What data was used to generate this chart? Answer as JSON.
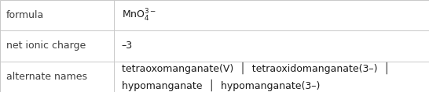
{
  "rows": [
    {
      "label": "formula",
      "value_lines": [
        "formula_special"
      ],
      "is_formula": true
    },
    {
      "label": "net ionic charge",
      "value_lines": [
        "–3"
      ],
      "is_formula": false
    },
    {
      "label": "alternate names",
      "value_lines": [
        "tetraoxomanganate(V)  │  tetraoxidomanganate(3–)  │",
        "hypomanganate  │  hypomanganate(3–)"
      ],
      "is_formula": false
    }
  ],
  "col_split": 0.265,
  "bg_color": "#ffffff",
  "border_color": "#c8c8c8",
  "label_color": "#404040",
  "value_color": "#1a1a1a",
  "font_size": 9.0,
  "fig_width": 5.46,
  "fig_height": 1.18,
  "dpi": 100
}
